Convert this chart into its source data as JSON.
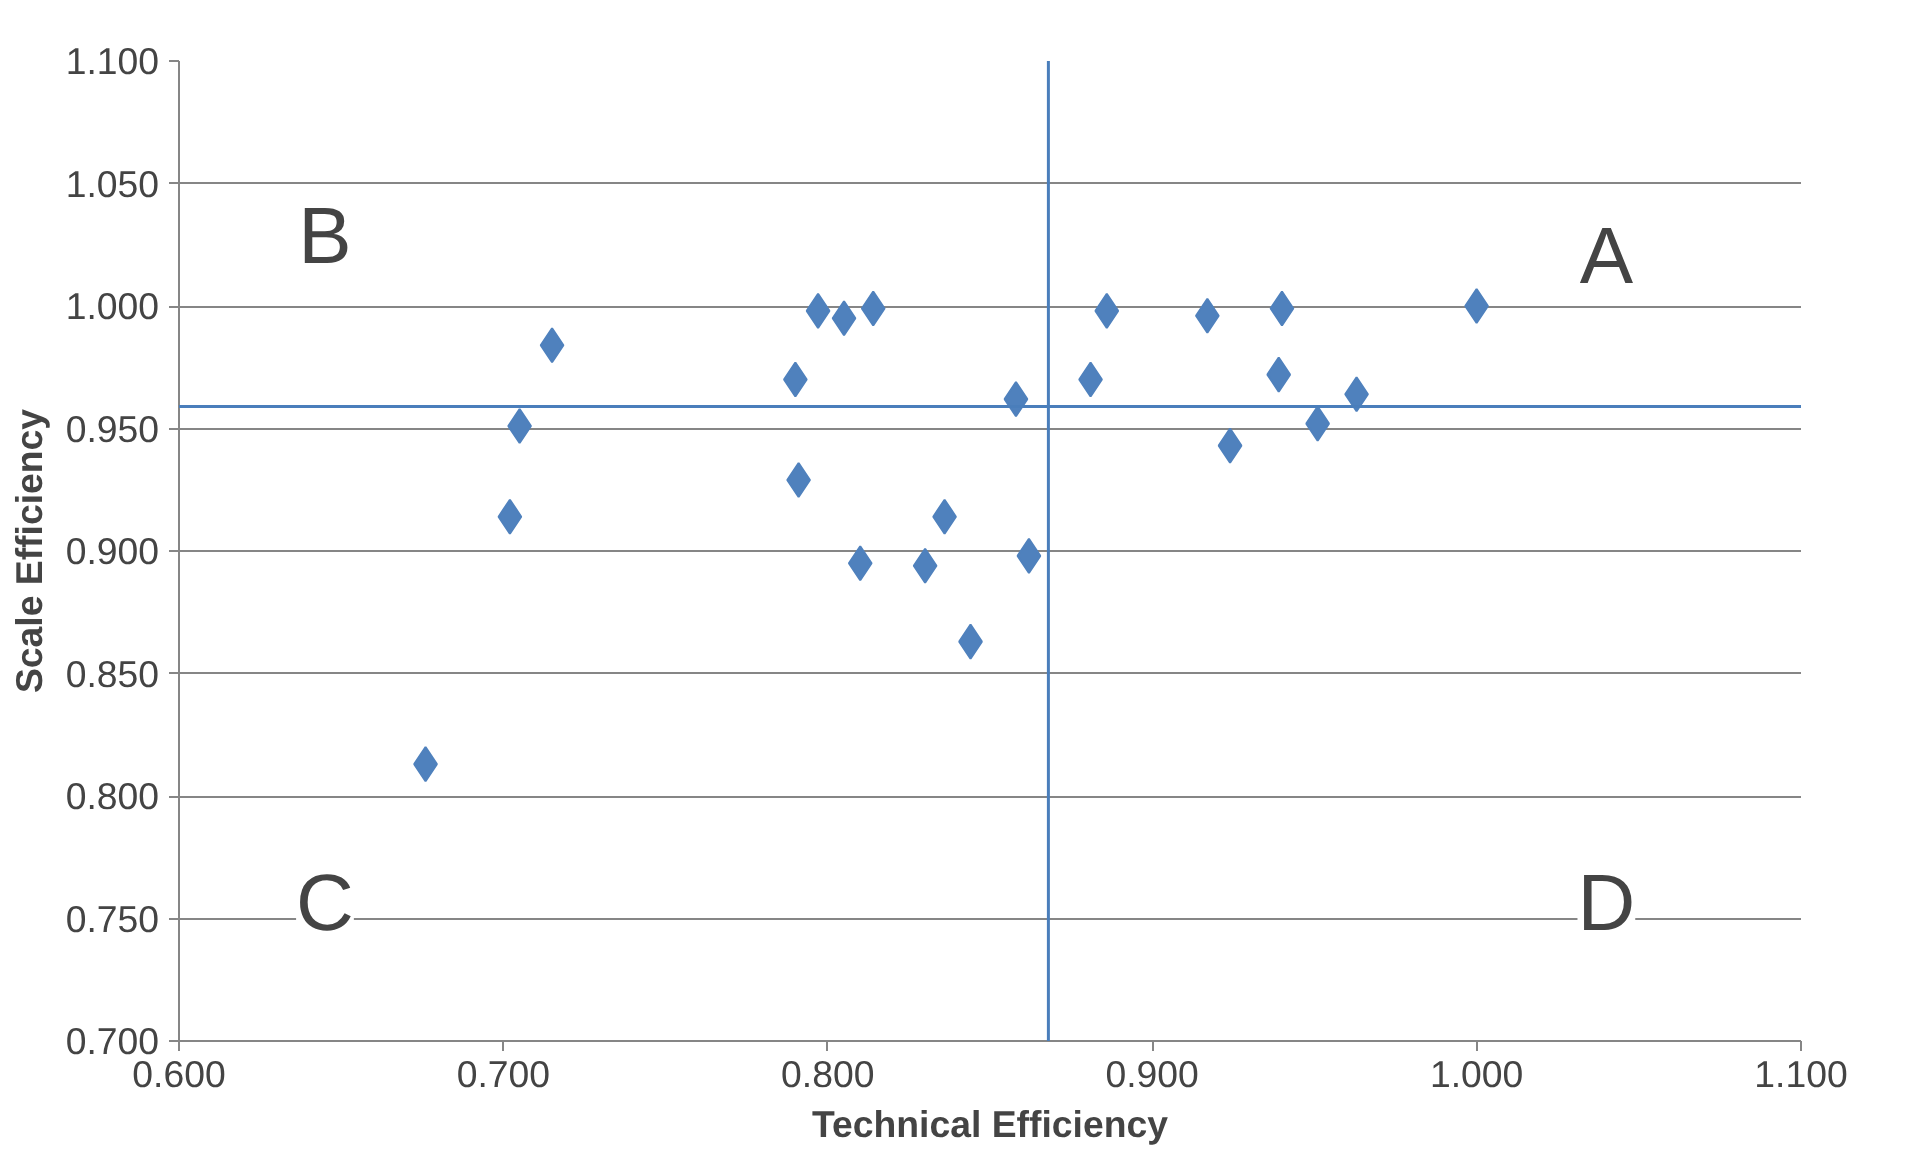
{
  "chart_data": {
    "type": "scatter",
    "xlabel": "Technical Efficiency",
    "ylabel": "Scale Efficiency",
    "x": [
      0.676,
      0.702,
      0.705,
      0.715,
      0.79,
      0.791,
      0.797,
      0.805,
      0.814,
      0.81,
      0.83,
      0.836,
      0.844,
      0.858,
      0.862,
      0.881,
      0.886,
      0.917,
      0.924,
      0.94,
      0.939,
      0.951,
      0.963,
      1.0
    ],
    "series": [
      {
        "color": "#4f81bd",
        "values": [
          0.813,
          0.914,
          0.951,
          0.984,
          0.97,
          0.929,
          0.998,
          0.995,
          0.999,
          0.895,
          0.894,
          0.914,
          0.863,
          0.962,
          0.898,
          0.97,
          0.998,
          0.996,
          0.943,
          0.999,
          0.972,
          0.952,
          0.964,
          1.0
        ]
      }
    ],
    "marker": "diamond",
    "grid": "y",
    "xlim": [
      0.6,
      1.1
    ],
    "xticks": [
      {
        "value": 0.6,
        "label": "0.600"
      },
      {
        "value": 0.7,
        "label": "0.700"
      },
      {
        "value": 0.8,
        "label": "0.800"
      },
      {
        "value": 0.9,
        "label": "0.900"
      },
      {
        "value": 1.0,
        "label": "1.000"
      },
      {
        "value": 1.1,
        "label": "1.100"
      }
    ],
    "ylim": [
      0.7,
      1.1
    ],
    "yticks": [
      {
        "value": 0.7,
        "label": "0.700"
      },
      {
        "value": 0.75,
        "label": "0.750"
      },
      {
        "value": 0.8,
        "label": "0.800"
      },
      {
        "value": 0.85,
        "label": "0.850"
      },
      {
        "value": 0.9,
        "label": "0.900"
      },
      {
        "value": 0.95,
        "label": "0.950"
      },
      {
        "value": 1.0,
        "label": "1.000"
      },
      {
        "value": 1.05,
        "label": "1.050"
      },
      {
        "value": 1.1,
        "label": "1.100"
      }
    ],
    "ref_lines": [
      {
        "axis": "x",
        "value": 0.868,
        "color": "#4a7ebb"
      },
      {
        "axis": "y",
        "value": 0.959,
        "color": "#4a7ebb"
      }
    ],
    "annotations": [
      "A",
      "B",
      "C",
      "D"
    ]
  }
}
